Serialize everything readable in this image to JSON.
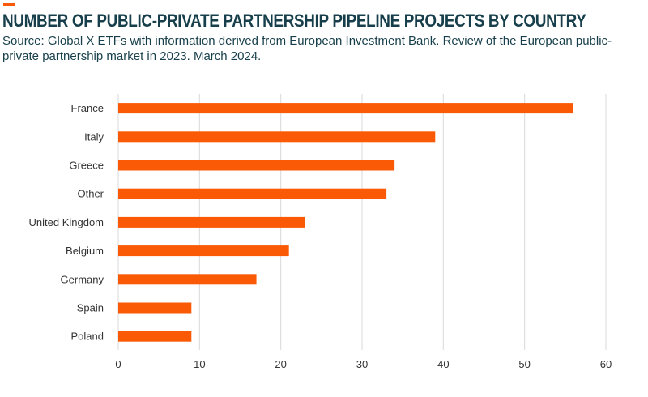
{
  "header": {
    "title": "NUMBER OF PUBLIC-PRIVATE PARTNERSHIP PIPELINE PROJECTS BY COUNTRY",
    "source": "Source: Global X ETFs with information derived from European Investment Bank. Review of the European public- private partnership market in 2023. March 2024."
  },
  "colors": {
    "bar": "#fa5a05",
    "title": "#173f4b",
    "grid": "#d9d9d9",
    "accent": "#fa5a05"
  },
  "chart_data": {
    "type": "bar",
    "orientation": "horizontal",
    "categories": [
      "France",
      "Italy",
      "Greece",
      "Other",
      "United Kingdom",
      "Belgium",
      "Germany",
      "Spain",
      "Poland"
    ],
    "values": [
      56,
      39,
      34,
      33,
      23,
      21,
      17,
      9,
      9
    ],
    "xlim": [
      0,
      60
    ],
    "xticks": [
      0,
      10,
      20,
      30,
      40,
      50,
      60
    ],
    "grid": "vertical",
    "legend": "none"
  }
}
